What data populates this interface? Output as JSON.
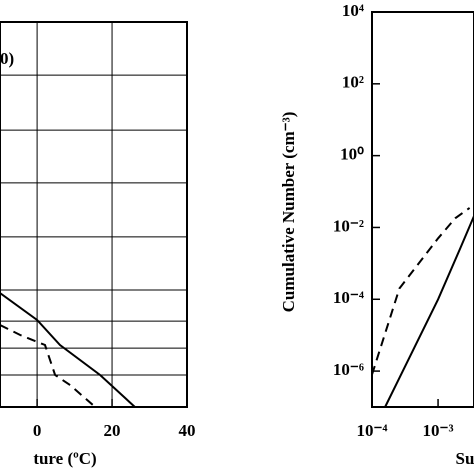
{
  "chart_data": [
    {
      "type": "line",
      "annotation": "0)",
      "xlabel": "ture (ºC)",
      "xlim": [
        -9.9,
        40
      ],
      "xticks": [
        0,
        20,
        40
      ],
      "xgrid": [
        0,
        20
      ],
      "ylim": [
        0,
        1
      ],
      "ygrid": [
        0.862,
        0.719,
        0.582,
        0.442,
        0.304,
        0.223,
        0.153,
        0.083
      ],
      "series": [
        {
          "name": "solid",
          "color": "#000000",
          "dash": false,
          "x": [
            -9.9,
            0,
            6.1,
            16.8,
            26.1
          ],
          "values": [
            0.296,
            0.226,
            0.161,
            0.083,
            0
          ]
        },
        {
          "name": "dashed",
          "color": "#000000",
          "dash": true,
          "x": [
            -9.9,
            -4.5,
            2.1,
            4.8,
            8.8,
            15.5
          ],
          "values": [
            0.213,
            0.187,
            0.161,
            0.083,
            0.057,
            0
          ]
        }
      ]
    },
    {
      "type": "line",
      "xlabel": "Su",
      "ylabel": "Cumulative Number (cm⁻³)",
      "xlog": true,
      "ylog": true,
      "xlim": [
        0.0001,
        0.0035
      ],
      "xticks": [
        {
          "value": 0.0001,
          "label": "10⁻⁴"
        },
        {
          "value": 0.001,
          "label": "10⁻³"
        }
      ],
      "ylim": [
        1e-07,
        10000
      ],
      "yticks": [
        {
          "value": 10000,
          "label": "10⁴"
        },
        {
          "value": 100,
          "label": "10²"
        },
        {
          "value": 1,
          "label": "10⁰"
        },
        {
          "value": 0.01,
          "label": "10⁻²"
        },
        {
          "value": 0.0001,
          "label": "10⁻⁴"
        },
        {
          "value": 1e-06,
          "label": "10⁻⁶"
        }
      ],
      "series": [
        {
          "name": "solid",
          "color": "#000000",
          "dash": false,
          "x": [
            0.000158,
            0.001,
            0.00214,
            0.00355
          ],
          "values": [
            1e-07,
            0.0001,
            0.0025,
            0.022
          ]
        },
        {
          "name": "dashed",
          "color": "#000000",
          "dash": true,
          "x": [
            0.0001,
            0.00026,
            0.001,
            0.00182,
            0.003
          ],
          "values": [
            8e-07,
            0.0002,
            0.005,
            0.018,
            0.035
          ]
        }
      ]
    }
  ]
}
